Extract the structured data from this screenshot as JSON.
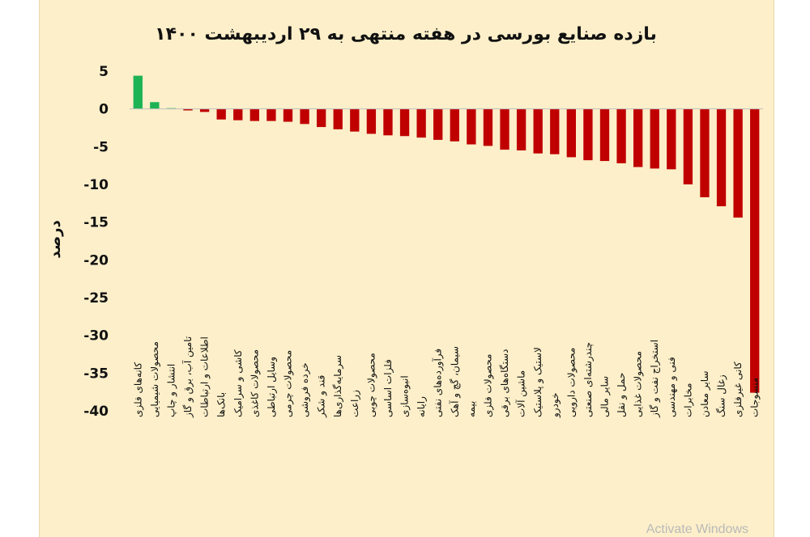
{
  "chart_data": {
    "type": "bar",
    "title": "بازده صنایع بورسی در هفته منتهی به ۲۹ اردیبهشت ۱۴۰۰",
    "xlabel": "",
    "ylabel": "درصد",
    "ylim": [
      -40,
      5
    ],
    "yticks": [
      "5",
      "0",
      "-5",
      "-10",
      "-15",
      "-20",
      "-25",
      "-30",
      "-35",
      "-40"
    ],
    "ytick_values": [
      5,
      0,
      -5,
      -10,
      -15,
      -20,
      -25,
      -30,
      -35,
      -40
    ],
    "grid": false,
    "legend": "none",
    "positive_color": "#1db354",
    "negative_color": "#c00000",
    "categories": [
      "کانه‌های فلزی",
      "محصولات شیمیایی",
      "انتشار و چاپ",
      "تامین آب، برق و گاز",
      "اطلاعات و ارتباطات",
      "بانک‌ها",
      "کاشی و سرامیک",
      "محصولات کاغذی",
      "وسایل ارتباطی",
      "محصولات چرمی",
      "خرده فروشی",
      "قند و شکر",
      "سرمایه‌گذاری‌ها",
      "زراعت",
      "محصولات چوبی",
      "فلزات اساسی",
      "انبوه‌سازی",
      "رایانه",
      "فرآورده‌های نفتی",
      "سیمان، گچ و آهک",
      "بیمه",
      "محصولات فلزی",
      "دستگاه‌های برقی",
      "ماشین آلات",
      "لاستیک و پلاستیک",
      "خودرو",
      "محصولات دارویی",
      "چندرشته‌ای صنعتی",
      "سایر مالی",
      "حمل و نقل",
      "محصولات غذایی",
      "استخراج نفت و گاز",
      "فنی و مهندسی",
      "مخابرات",
      "سایر معادن",
      "زغال سنگ",
      "کانی غیرفلزی",
      "منسوجات"
    ],
    "values": [
      4.4,
      0.9,
      0.1,
      -0.2,
      -0.4,
      -1.4,
      -1.5,
      -1.6,
      -1.6,
      -1.7,
      -2.0,
      -2.4,
      -2.7,
      -3.0,
      -3.3,
      -3.5,
      -3.6,
      -3.8,
      -4.1,
      -4.3,
      -4.7,
      -4.9,
      -5.4,
      -5.5,
      -5.9,
      -6.0,
      -6.4,
      -6.8,
      -6.9,
      -7.2,
      -7.7,
      -7.9,
      -8.0,
      -10.0,
      -11.7,
      -12.9,
      -14.4,
      -37.6
    ]
  },
  "watermark": "Activate Windows"
}
